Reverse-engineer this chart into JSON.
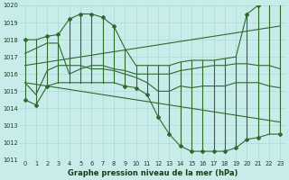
{
  "title": "Graphe pression niveau de la mer (hPa)",
  "background_color": "#c8ece9",
  "grid_color": "#aad8d4",
  "line_color": "#2d6a2d",
  "ylim": [
    1011,
    1020
  ],
  "yticks": [
    1011,
    1012,
    1013,
    1014,
    1015,
    1016,
    1017,
    1018,
    1019,
    1020
  ],
  "hours": [
    0,
    1,
    2,
    3,
    4,
    5,
    6,
    7,
    8,
    9,
    10,
    11,
    12,
    13,
    14,
    15,
    16,
    17,
    18,
    19,
    20,
    21,
    22,
    23
  ],
  "x_labels": [
    "0",
    "1",
    "2",
    "3",
    "4",
    "5",
    "6",
    "7",
    "8",
    "9",
    "10",
    "11",
    "12",
    "13",
    "14",
    "15",
    "16",
    "17",
    "18",
    "19",
    "20",
    "21",
    "22",
    "23"
  ],
  "upper_hi": [
    1018.0,
    1018.0,
    1018.2,
    1018.3,
    1019.2,
    1019.5,
    1019.5,
    1019.3,
    1018.8,
    1017.5,
    1016.5,
    1016.5,
    1016.5,
    1016.5,
    1016.7,
    1016.8,
    1016.8,
    1016.8,
    1016.9,
    1017.0,
    1019.5,
    1020.0,
    1020.1,
    1020.3
  ],
  "upper_lo": [
    1017.2,
    1017.5,
    1017.8,
    1017.8,
    1016.0,
    1016.3,
    1016.5,
    1016.5,
    1016.3,
    1016.2,
    1016.0,
    1016.0,
    1016.0,
    1016.0,
    1016.2,
    1016.3,
    1016.4,
    1016.5,
    1016.5,
    1016.6,
    1016.6,
    1016.5,
    1016.5,
    1016.3
  ],
  "lower_hi": [
    1015.5,
    1014.8,
    1016.2,
    1016.5,
    1016.5,
    1016.5,
    1016.3,
    1016.3,
    1016.2,
    1016.0,
    1015.8,
    1015.5,
    1015.0,
    1015.0,
    1015.3,
    1015.2,
    1015.3,
    1015.3,
    1015.3,
    1015.5,
    1015.5,
    1015.5,
    1015.3,
    1015.2
  ],
  "lower_lo": [
    1014.5,
    1014.2,
    1015.3,
    1015.5,
    1015.5,
    1015.5,
    1015.5,
    1015.5,
    1015.5,
    1015.3,
    1015.2,
    1014.8,
    1013.5,
    1012.5,
    1011.8,
    1011.5,
    1011.5,
    1011.5,
    1011.5,
    1011.7,
    1012.2,
    1012.3,
    1012.5,
    1012.5
  ],
  "trend_upper": [
    1016.5,
    1016.6,
    1016.7,
    1016.8,
    1016.9,
    1017.0,
    1017.1,
    1017.2,
    1017.3,
    1017.4,
    1017.5,
    1017.6,
    1017.7,
    1017.8,
    1017.9,
    1018.0,
    1018.1,
    1018.2,
    1018.3,
    1018.4,
    1018.5,
    1018.6,
    1018.7,
    1018.8
  ],
  "trend_lower": [
    1015.5,
    1015.4,
    1015.3,
    1015.2,
    1015.1,
    1015.0,
    1014.9,
    1014.8,
    1014.7,
    1014.6,
    1014.5,
    1014.4,
    1014.3,
    1014.2,
    1014.1,
    1014.0,
    1013.9,
    1013.8,
    1013.7,
    1013.6,
    1013.5,
    1013.4,
    1013.3,
    1013.2
  ],
  "marker_top": [
    1018.0,
    null,
    1018.2,
    1018.3,
    1019.2,
    1019.5,
    1019.5,
    1019.3,
    1018.8,
    null,
    null,
    null,
    null,
    null,
    null,
    null,
    null,
    null,
    null,
    null,
    1019.5,
    1020.0,
    null,
    1020.3
  ],
  "marker_bot": [
    1014.5,
    1014.2,
    1015.3,
    null,
    null,
    null,
    null,
    null,
    null,
    1015.3,
    1015.2,
    1014.8,
    1013.5,
    1012.5,
    1011.8,
    1011.5,
    1011.5,
    1011.5,
    1011.5,
    1011.7,
    1012.2,
    1012.3,
    null,
    1012.5
  ],
  "show_vert": [
    1,
    1,
    1,
    1,
    1,
    1,
    1,
    1,
    1,
    1,
    1,
    1,
    1,
    1,
    1,
    1,
    1,
    1,
    1,
    1,
    1,
    1,
    1,
    1
  ]
}
